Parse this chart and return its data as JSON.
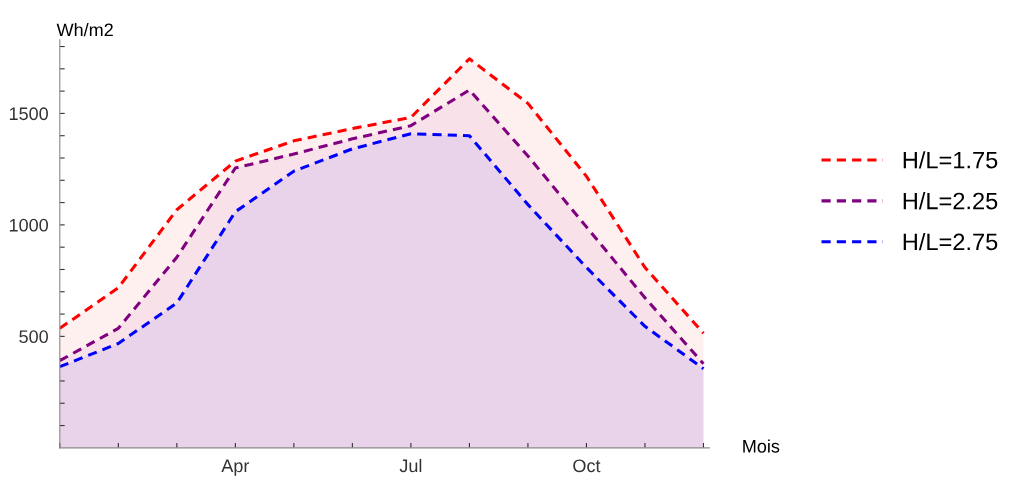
{
  "chart_data": {
    "type": "area",
    "xlabel": "Mois",
    "ylabel": "Wh/m2",
    "categories": [
      null,
      null,
      null,
      "Apr",
      null,
      null,
      "Jul",
      null,
      null,
      "Oct",
      null,
      null
    ],
    "series": [
      {
        "name": "H/L=1.75",
        "color": "#ff0000",
        "values": [
          536,
          718,
          1068,
          1286,
          1377,
          1432,
          1482,
          1745,
          1545,
          1218,
          809,
          514
        ]
      },
      {
        "name": "H/L=2.25",
        "color": "#800080",
        "values": [
          391,
          536,
          855,
          1255,
          1318,
          1386,
          1445,
          1605,
          1309,
          991,
          673,
          377
        ]
      },
      {
        "name": "H/L=2.75",
        "color": "#0000ff",
        "values": [
          364,
          468,
          650,
          1059,
          1241,
          1341,
          1409,
          1400,
          1091,
          809,
          545,
          355
        ]
      }
    ],
    "ylim": [
      0,
      1830
    ],
    "yticks": [
      {
        "value": 100,
        "label": null
      },
      {
        "value": 200,
        "label": null
      },
      {
        "value": 300,
        "label": null
      },
      {
        "value": 400,
        "label": null
      },
      500,
      {
        "value": 600,
        "label": null
      },
      {
        "value": 700,
        "label": null
      },
      {
        "value": 800,
        "label": null
      },
      {
        "value": 900,
        "label": null
      },
      1000,
      {
        "value": 1100,
        "label": null
      },
      {
        "value": 1200,
        "label": null
      },
      {
        "value": 1300,
        "label": null
      },
      {
        "value": 1400,
        "label": null
      },
      1500,
      {
        "value": 1600,
        "label": null
      },
      {
        "value": 1700,
        "label": null
      },
      {
        "value": 1800,
        "label": null
      }
    ],
    "grid": false,
    "legend": "right",
    "marker": "none",
    "line_style": "dashed"
  }
}
